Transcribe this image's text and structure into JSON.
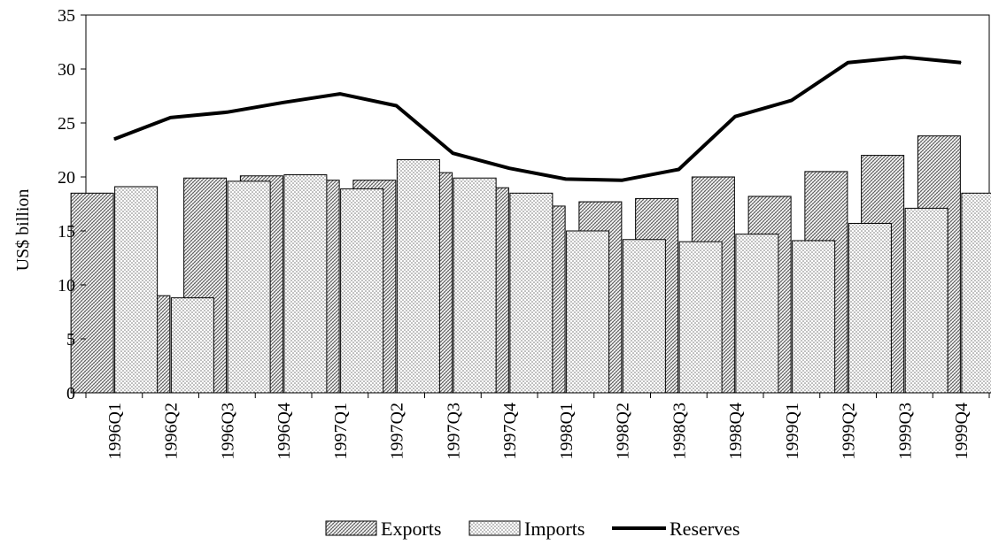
{
  "chart_data": {
    "type": "bar",
    "title": "",
    "xlabel": "",
    "ylabel": "US$ billion",
    "ylim": [
      0,
      35
    ],
    "yticks": [
      0,
      5,
      10,
      15,
      20,
      25,
      30,
      35
    ],
    "grid": false,
    "legend_position": "bottom-center",
    "categories": [
      "1996Q1",
      "1996Q2",
      "1996Q3",
      "1996Q4",
      "1997Q1",
      "1997Q2",
      "1997Q3",
      "1997Q4",
      "1998Q1",
      "1998Q2",
      "1998Q3",
      "1998Q4",
      "1999Q1",
      "1999Q2",
      "1999Q3",
      "1999Q4"
    ],
    "series": [
      {
        "name": "Exports",
        "kind": "bar",
        "pattern": "dense-hatch",
        "values": [
          18.5,
          9.0,
          19.9,
          20.1,
          19.7,
          19.7,
          20.4,
          19.0,
          17.3,
          17.7,
          18.0,
          20.0,
          18.2,
          20.5,
          22.0,
          23.8
        ]
      },
      {
        "name": "Imports",
        "kind": "bar",
        "pattern": "light-dots",
        "values": [
          19.1,
          8.8,
          19.6,
          20.2,
          18.9,
          21.6,
          19.9,
          18.5,
          15.0,
          14.2,
          14.0,
          14.7,
          14.1,
          15.7,
          17.1,
          18.5
        ]
      },
      {
        "name": "Reserves",
        "kind": "line",
        "color": "#000000",
        "values": [
          23.5,
          25.5,
          26.0,
          26.9,
          27.7,
          26.6,
          22.2,
          20.8,
          19.8,
          19.7,
          20.7,
          25.6,
          27.1,
          30.6,
          31.1,
          30.6
        ]
      }
    ]
  }
}
